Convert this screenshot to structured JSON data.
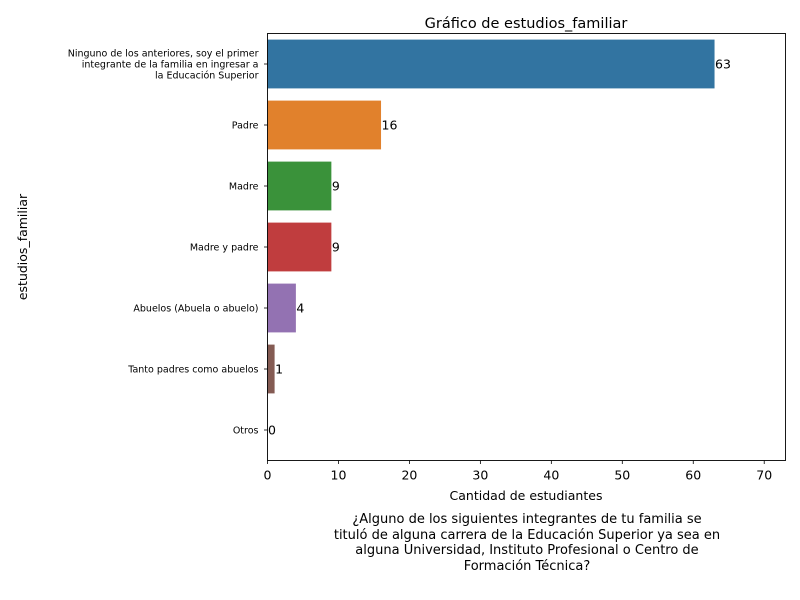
{
  "chart_data": {
    "type": "bar",
    "orientation": "horizontal",
    "title": "Gráfico de estudios_familiar",
    "xlabel": "Cantidad de estudiantes",
    "ylabel": "estudios_familiar",
    "xlim": [
      0,
      73
    ],
    "xticks": [
      "0",
      "10",
      "20",
      "30",
      "40",
      "50",
      "60",
      "70"
    ],
    "categories": [
      [
        "Ninguno de los anteriores, soy el primer",
        "integrante de la familia en ingresar a",
        "la Educación Superior"
      ],
      [
        "Padre"
      ],
      [
        "Madre"
      ],
      [
        "Madre y padre"
      ],
      [
        "Abuelos (Abuela o abuelo)"
      ],
      [
        "Tanto padres como abuelos"
      ],
      [
        "Otros"
      ]
    ],
    "values": [
      63,
      16,
      9,
      9,
      4,
      1,
      0
    ],
    "data_labels": [
      "63",
      "16",
      "9",
      "9",
      "4",
      "1",
      "0"
    ],
    "colors": [
      "#3274a1",
      "#e1812c",
      "#3a923a",
      "#c03d3e",
      "#9372b2",
      "#845b53",
      "#d684bd"
    ],
    "grid": false,
    "legend": "none"
  },
  "caption": [
    "¿Alguno de los siguientes integrantes de tu familia se",
    "tituló de alguna carrera de la Educación Superior ya sea en",
    "alguna Universidad, Instituto Profesional o Centro de",
    "Formación Técnica?"
  ]
}
